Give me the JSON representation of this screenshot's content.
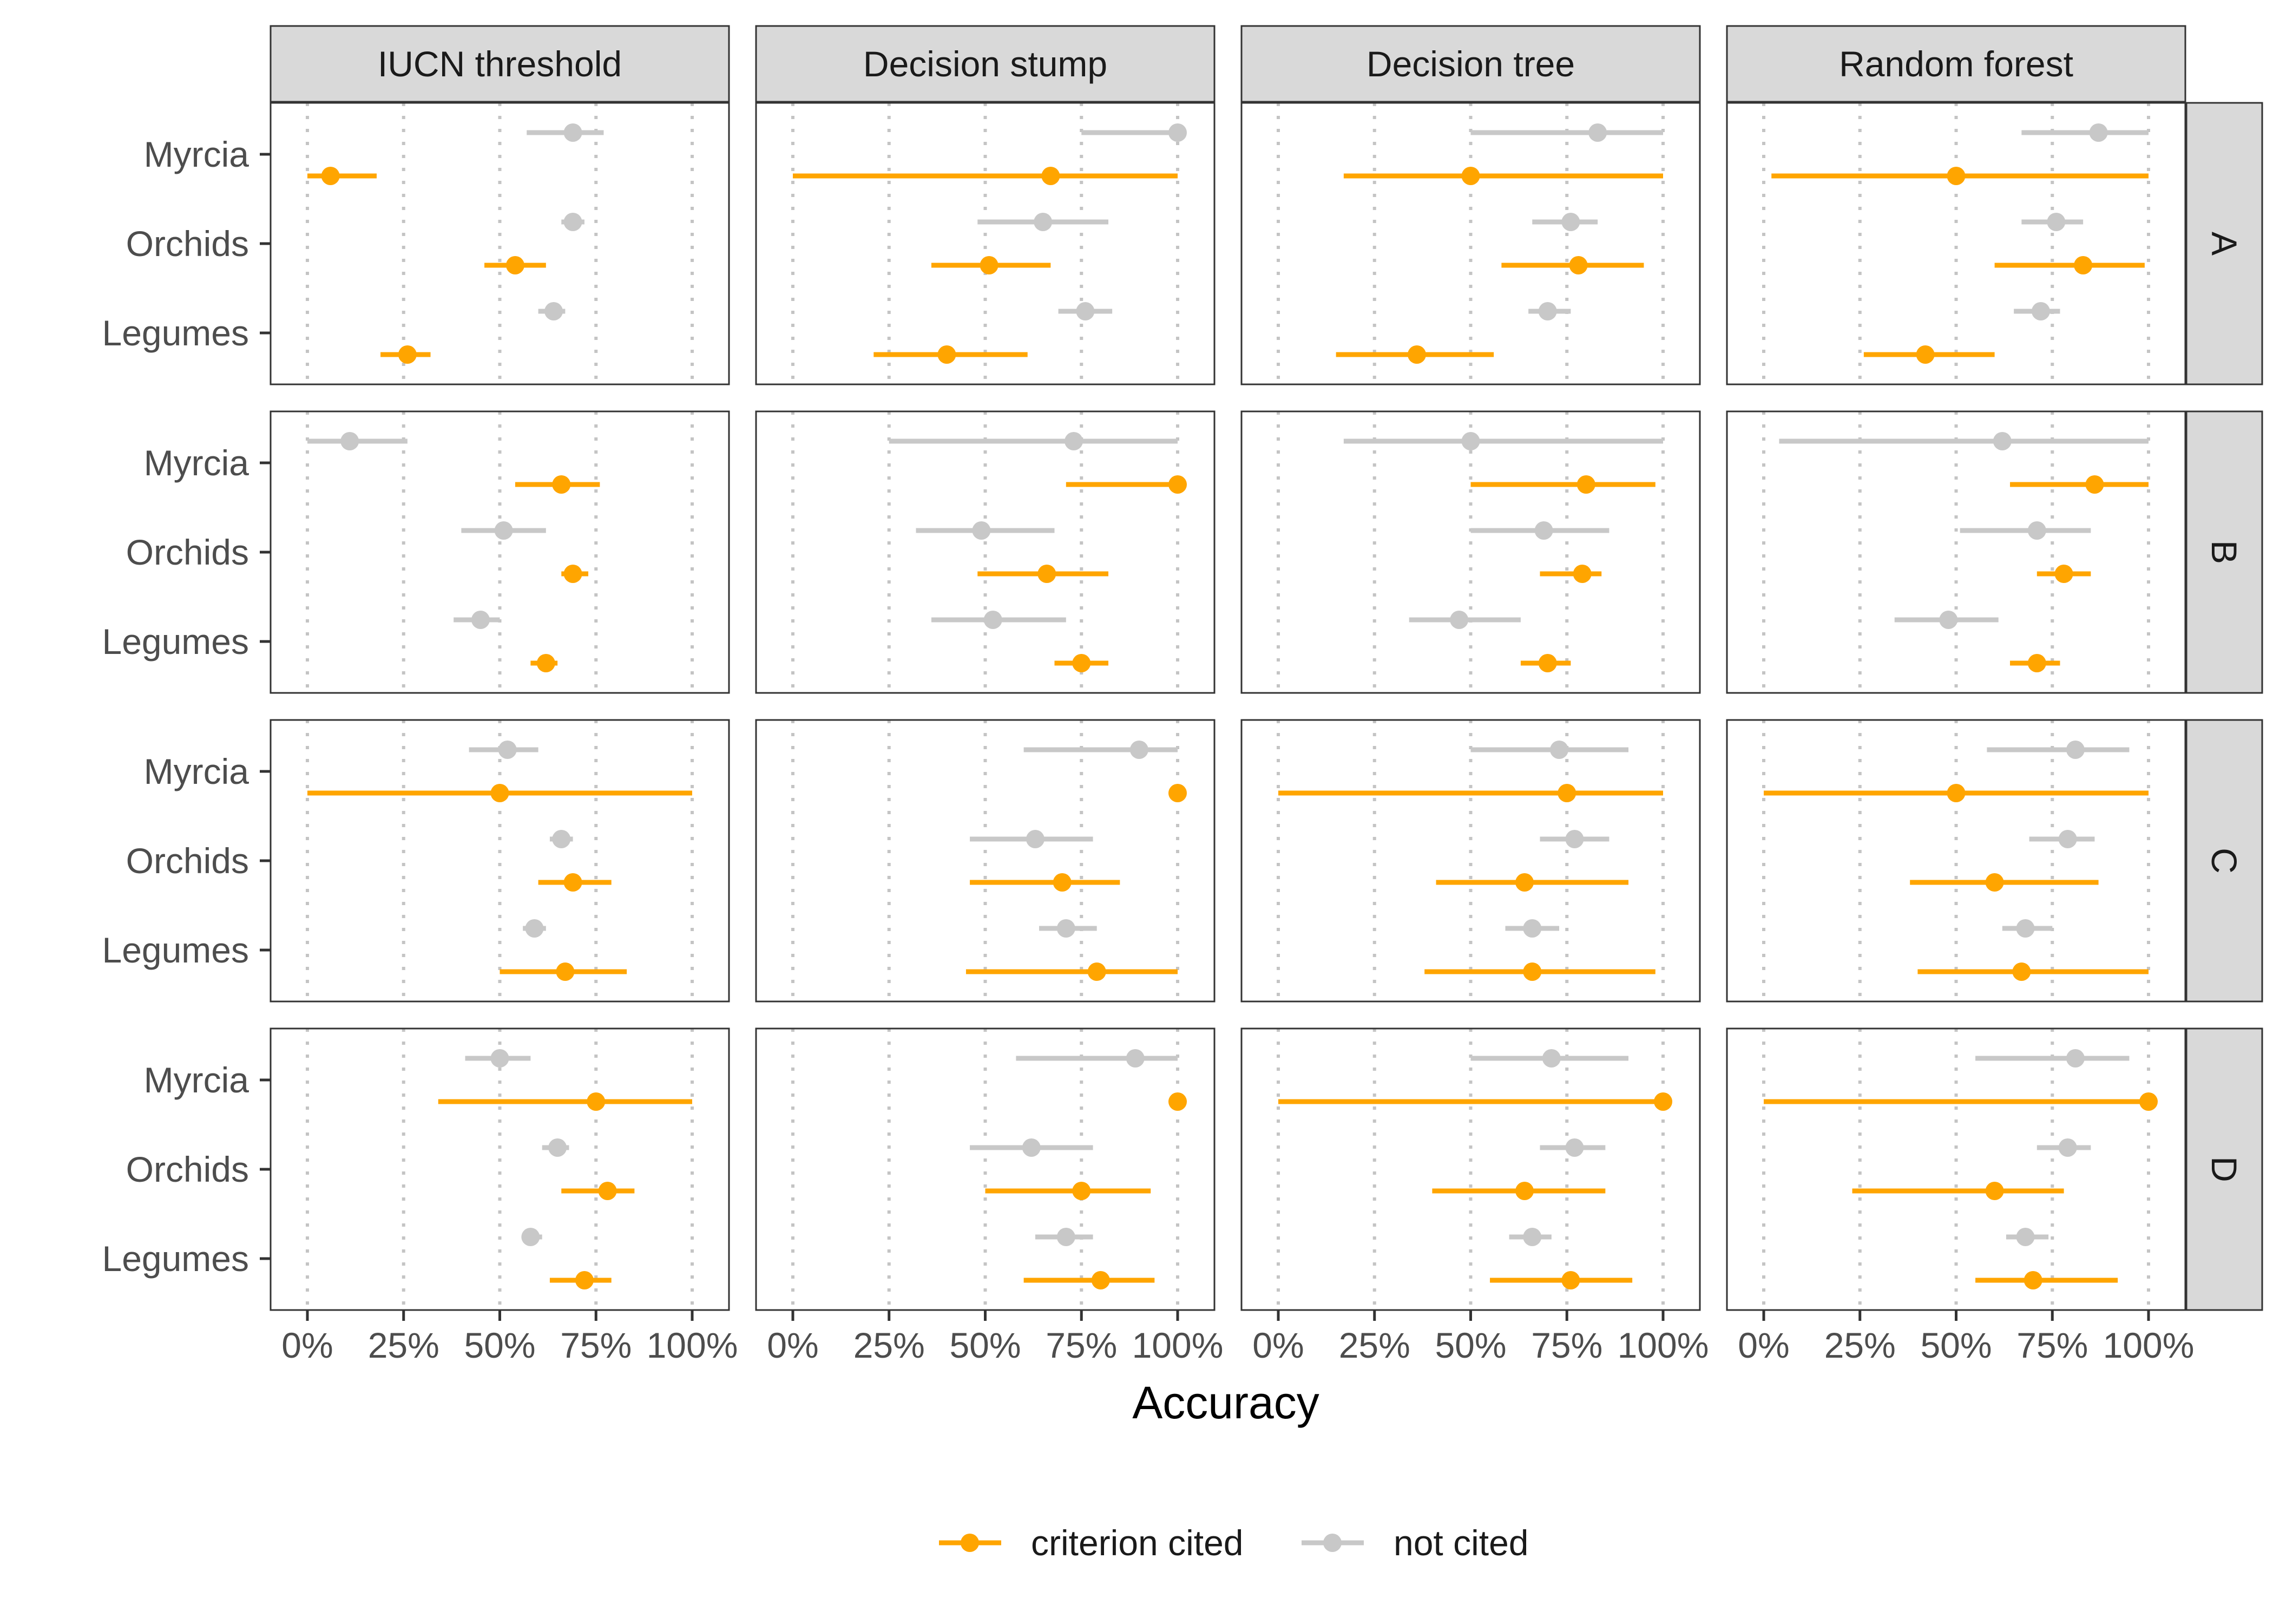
{
  "chart_data": {
    "type": "forest",
    "xlabel": "Accuracy",
    "ylabel": "",
    "xlim": [
      0,
      1
    ],
    "x_ticks": [
      "0%",
      "25%",
      "50%",
      "75%",
      "100%"
    ],
    "x_tick_values": [
      0,
      0.25,
      0.5,
      0.75,
      1
    ],
    "grid": "vertical dotted",
    "legend_position": "bottom",
    "columns": [
      "IUCN threshold",
      "Decision stump",
      "Decision tree",
      "Random forest"
    ],
    "rows": [
      "A",
      "B",
      "C",
      "D"
    ],
    "groups": [
      "Myrcia",
      "Orchids",
      "Legumes"
    ],
    "series": [
      {
        "name": "criterion cited",
        "color": "#FFA500"
      },
      {
        "name": "not cited",
        "color": "#C8C8C8"
      }
    ],
    "panels": [
      {
        "row": "A",
        "column": "IUCN threshold",
        "values": {
          "Myrcia": {
            "not cited": [
              0.57,
              0.69,
              0.77
            ],
            "criterion cited": [
              0.0,
              0.06,
              0.18
            ]
          },
          "Orchids": {
            "not cited": [
              0.66,
              0.69,
              0.72
            ],
            "criterion cited": [
              0.46,
              0.54,
              0.62
            ]
          },
          "Legumes": {
            "not cited": [
              0.6,
              0.64,
              0.67
            ],
            "criterion cited": [
              0.19,
              0.26,
              0.32
            ]
          }
        }
      },
      {
        "row": "A",
        "column": "Decision stump",
        "values": {
          "Myrcia": {
            "not cited": [
              0.75,
              1.0,
              1.0
            ],
            "criterion cited": [
              0.0,
              0.67,
              1.0
            ]
          },
          "Orchids": {
            "not cited": [
              0.48,
              0.65,
              0.82
            ],
            "criterion cited": [
              0.36,
              0.51,
              0.67
            ]
          },
          "Legumes": {
            "not cited": [
              0.69,
              0.76,
              0.83
            ],
            "criterion cited": [
              0.21,
              0.4,
              0.61
            ]
          }
        }
      },
      {
        "row": "A",
        "column": "Decision tree",
        "values": {
          "Myrcia": {
            "not cited": [
              0.5,
              0.83,
              1.0
            ],
            "criterion cited": [
              0.17,
              0.5,
              1.0
            ]
          },
          "Orchids": {
            "not cited": [
              0.66,
              0.76,
              0.83
            ],
            "criterion cited": [
              0.58,
              0.78,
              0.95
            ]
          },
          "Legumes": {
            "not cited": [
              0.65,
              0.7,
              0.76
            ],
            "criterion cited": [
              0.15,
              0.36,
              0.56
            ]
          }
        }
      },
      {
        "row": "A",
        "column": "Random forest",
        "values": {
          "Myrcia": {
            "not cited": [
              0.67,
              0.87,
              1.0
            ],
            "criterion cited": [
              0.02,
              0.5,
              1.0
            ]
          },
          "Orchids": {
            "not cited": [
              0.67,
              0.76,
              0.83
            ],
            "criterion cited": [
              0.6,
              0.83,
              0.99
            ]
          },
          "Legumes": {
            "not cited": [
              0.65,
              0.72,
              0.77
            ],
            "criterion cited": [
              0.26,
              0.42,
              0.6
            ]
          }
        }
      },
      {
        "row": "B",
        "column": "IUCN threshold",
        "values": {
          "Myrcia": {
            "not cited": [
              0.0,
              0.11,
              0.26
            ],
            "criterion cited": [
              0.54,
              0.66,
              0.76
            ]
          },
          "Orchids": {
            "not cited": [
              0.4,
              0.51,
              0.62
            ],
            "criterion cited": [
              0.66,
              0.69,
              0.73
            ]
          },
          "Legumes": {
            "not cited": [
              0.38,
              0.45,
              0.5
            ],
            "criterion cited": [
              0.58,
              0.62,
              0.65
            ]
          }
        }
      },
      {
        "row": "B",
        "column": "Decision stump",
        "values": {
          "Myrcia": {
            "not cited": [
              0.25,
              0.73,
              1.0
            ],
            "criterion cited": [
              0.71,
              1.0,
              1.0
            ]
          },
          "Orchids": {
            "not cited": [
              0.32,
              0.49,
              0.68
            ],
            "criterion cited": [
              0.48,
              0.66,
              0.82
            ]
          },
          "Legumes": {
            "not cited": [
              0.36,
              0.52,
              0.71
            ],
            "criterion cited": [
              0.68,
              0.75,
              0.82
            ]
          }
        }
      },
      {
        "row": "B",
        "column": "Decision tree",
        "values": {
          "Myrcia": {
            "not cited": [
              0.17,
              0.5,
              1.0
            ],
            "criterion cited": [
              0.5,
              0.8,
              0.98
            ]
          },
          "Orchids": {
            "not cited": [
              0.5,
              0.69,
              0.86
            ],
            "criterion cited": [
              0.68,
              0.79,
              0.84
            ]
          },
          "Legumes": {
            "not cited": [
              0.34,
              0.47,
              0.63
            ],
            "criterion cited": [
              0.63,
              0.7,
              0.76
            ]
          }
        }
      },
      {
        "row": "B",
        "column": "Random forest",
        "values": {
          "Myrcia": {
            "not cited": [
              0.04,
              0.62,
              1.0
            ],
            "criterion cited": [
              0.64,
              0.86,
              1.0
            ]
          },
          "Orchids": {
            "not cited": [
              0.51,
              0.71,
              0.85
            ],
            "criterion cited": [
              0.71,
              0.78,
              0.85
            ]
          },
          "Legumes": {
            "not cited": [
              0.34,
              0.48,
              0.61
            ],
            "criterion cited": [
              0.64,
              0.71,
              0.77
            ]
          }
        }
      },
      {
        "row": "C",
        "column": "IUCN threshold",
        "values": {
          "Myrcia": {
            "not cited": [
              0.42,
              0.52,
              0.6
            ],
            "criterion cited": [
              0.0,
              0.5,
              1.0
            ]
          },
          "Orchids": {
            "not cited": [
              0.63,
              0.66,
              0.69
            ],
            "criterion cited": [
              0.6,
              0.69,
              0.79
            ]
          },
          "Legumes": {
            "not cited": [
              0.56,
              0.59,
              0.62
            ],
            "criterion cited": [
              0.5,
              0.67,
              0.83
            ]
          }
        }
      },
      {
        "row": "C",
        "column": "Decision stump",
        "values": {
          "Myrcia": {
            "not cited": [
              0.6,
              0.9,
              1.0
            ],
            "criterion cited": [
              1.0,
              1.0,
              1.0
            ]
          },
          "Orchids": {
            "not cited": [
              0.46,
              0.63,
              0.78
            ],
            "criterion cited": [
              0.46,
              0.7,
              0.85
            ]
          },
          "Legumes": {
            "not cited": [
              0.64,
              0.71,
              0.79
            ],
            "criterion cited": [
              0.45,
              0.79,
              1.0
            ]
          }
        }
      },
      {
        "row": "C",
        "column": "Decision tree",
        "values": {
          "Myrcia": {
            "not cited": [
              0.5,
              0.73,
              0.91
            ],
            "criterion cited": [
              0.0,
              0.75,
              1.0
            ]
          },
          "Orchids": {
            "not cited": [
              0.68,
              0.77,
              0.86
            ],
            "criterion cited": [
              0.41,
              0.64,
              0.91
            ]
          },
          "Legumes": {
            "not cited": [
              0.59,
              0.66,
              0.73
            ],
            "criterion cited": [
              0.38,
              0.66,
              0.98
            ]
          }
        }
      },
      {
        "row": "C",
        "column": "Random forest",
        "values": {
          "Myrcia": {
            "not cited": [
              0.58,
              0.81,
              0.95
            ],
            "criterion cited": [
              0.0,
              0.5,
              1.0
            ]
          },
          "Orchids": {
            "not cited": [
              0.69,
              0.79,
              0.86
            ],
            "criterion cited": [
              0.38,
              0.6,
              0.87
            ]
          },
          "Legumes": {
            "not cited": [
              0.62,
              0.68,
              0.75
            ],
            "criterion cited": [
              0.4,
              0.67,
              1.0
            ]
          }
        }
      },
      {
        "row": "D",
        "column": "IUCN threshold",
        "values": {
          "Myrcia": {
            "not cited": [
              0.41,
              0.5,
              0.58
            ],
            "criterion cited": [
              0.34,
              0.75,
              1.0
            ]
          },
          "Orchids": {
            "not cited": [
              0.61,
              0.65,
              0.68
            ],
            "criterion cited": [
              0.66,
              0.78,
              0.85
            ]
          },
          "Legumes": {
            "not cited": [
              0.56,
              0.58,
              0.61
            ],
            "criterion cited": [
              0.63,
              0.72,
              0.79
            ]
          }
        }
      },
      {
        "row": "D",
        "column": "Decision stump",
        "values": {
          "Myrcia": {
            "not cited": [
              0.58,
              0.89,
              1.0
            ],
            "criterion cited": [
              1.0,
              1.0,
              1.0
            ]
          },
          "Orchids": {
            "not cited": [
              0.46,
              0.62,
              0.78
            ],
            "criterion cited": [
              0.5,
              0.75,
              0.93
            ]
          },
          "Legumes": {
            "not cited": [
              0.63,
              0.71,
              0.78
            ],
            "criterion cited": [
              0.6,
              0.8,
              0.94
            ]
          }
        }
      },
      {
        "row": "D",
        "column": "Decision tree",
        "values": {
          "Myrcia": {
            "not cited": [
              0.5,
              0.71,
              0.91
            ],
            "criterion cited": [
              0.0,
              1.0,
              1.0
            ]
          },
          "Orchids": {
            "not cited": [
              0.68,
              0.77,
              0.85
            ],
            "criterion cited": [
              0.4,
              0.64,
              0.85
            ]
          },
          "Legumes": {
            "not cited": [
              0.6,
              0.66,
              0.71
            ],
            "criterion cited": [
              0.55,
              0.76,
              0.92
            ]
          }
        }
      },
      {
        "row": "D",
        "column": "Random forest",
        "values": {
          "Myrcia": {
            "not cited": [
              0.55,
              0.81,
              0.95
            ],
            "criterion cited": [
              0.0,
              1.0,
              1.0
            ]
          },
          "Orchids": {
            "not cited": [
              0.71,
              0.79,
              0.85
            ],
            "criterion cited": [
              0.23,
              0.6,
              0.78
            ]
          },
          "Legumes": {
            "not cited": [
              0.63,
              0.68,
              0.74
            ],
            "criterion cited": [
              0.55,
              0.7,
              0.92
            ]
          }
        }
      }
    ]
  }
}
